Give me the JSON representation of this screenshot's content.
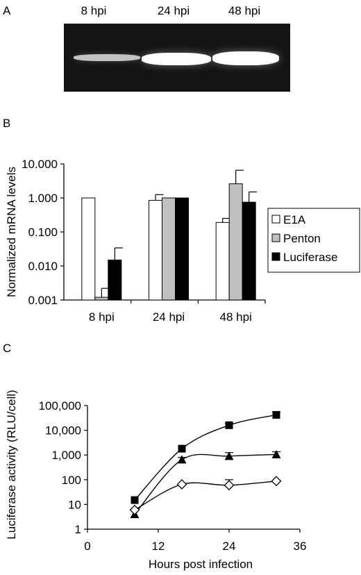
{
  "panels": {
    "a": {
      "letter": "A",
      "lanes": [
        "8 hpi",
        "24 hpi",
        "48 hpi"
      ],
      "band_intensity": [
        0.55,
        1.0,
        1.0
      ]
    },
    "b": {
      "letter": "B"
    },
    "c": {
      "letter": "C"
    }
  },
  "chart_data": [
    {
      "type": "bar",
      "panel": "B",
      "ylabel": "Normalized mRNA levels",
      "yscale": "log",
      "ylim": [
        0.001,
        10
      ],
      "yticks": [
        "10.000",
        "1.000",
        "0.100",
        "0.010",
        "0.001"
      ],
      "categories": [
        "8 hpi",
        "24 hpi",
        "48 hpi"
      ],
      "series": [
        {
          "name": "E1A",
          "color": "#ffffff",
          "values": [
            1.0,
            0.85,
            0.19
          ],
          "errors": [
            null,
            1.25,
            0.25
          ]
        },
        {
          "name": "Penton",
          "color": "#c0c0c0",
          "values": [
            0.0012,
            1.0,
            2.6
          ],
          "errors": [
            0.0022,
            null,
            6.5
          ]
        },
        {
          "name": "Luciferase",
          "color": "#000000",
          "values": [
            0.015,
            1.0,
            0.75
          ],
          "errors": [
            0.034,
            null,
            1.5
          ]
        }
      ],
      "legend": "right"
    },
    {
      "type": "scatter",
      "panel": "C",
      "xlabel": "Hours post infection",
      "ylabel": "Luciferase activity (RLU/cell)",
      "yscale": "log",
      "xlim": [
        0,
        36
      ],
      "ylim": [
        1,
        100000
      ],
      "xticks": [
        "0",
        "12",
        "24",
        "36"
      ],
      "yticks": [
        "100,000",
        "10,000",
        "1,000",
        "100",
        "10",
        "1"
      ],
      "series": [
        {
          "marker": "square",
          "x": [
            8,
            16,
            24,
            32
          ],
          "y": [
            15,
            1800,
            16000,
            42000
          ],
          "errors": [
            null,
            null,
            19000,
            55000
          ]
        },
        {
          "marker": "triangle",
          "x": [
            8,
            16,
            24,
            32
          ],
          "y": [
            4,
            650,
            900,
            1050
          ],
          "errors": [
            null,
            800,
            1250,
            1350
          ]
        },
        {
          "marker": "diamond",
          "x": [
            8,
            16,
            24,
            32
          ],
          "y": [
            6,
            65,
            60,
            88
          ],
          "errors": [
            null,
            null,
            100,
            null
          ]
        }
      ]
    }
  ]
}
